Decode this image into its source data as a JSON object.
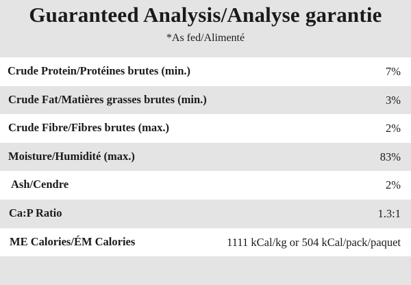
{
  "header": {
    "title": "Guaranteed Analysis/Analyse garantie",
    "subtitle": "*As fed/Alimenté"
  },
  "rows": [
    {
      "label": "Crude Protein/Protéines brutes (min.)",
      "value": "7%"
    },
    {
      "label": "Crude Fat/Matières grasses brutes (min.)",
      "value": "3%"
    },
    {
      "label": "Crude Fibre/Fibres brutes (max.)",
      "value": "2%"
    },
    {
      "label": "Moisture/Humidité (max.)",
      "value": "83%"
    },
    {
      "label": "Ash/Cendre",
      "value": "2%"
    },
    {
      "label": "Ca:P Ratio",
      "value": "1.3:1"
    },
    {
      "label": "ME Calories/ÉM Calories",
      "value": "1111 kCal/kg or 504 kCal/pack/paquet"
    }
  ],
  "colors": {
    "stripe": "#e4e4e4",
    "background": "#ffffff",
    "text": "#1a1a1a"
  }
}
